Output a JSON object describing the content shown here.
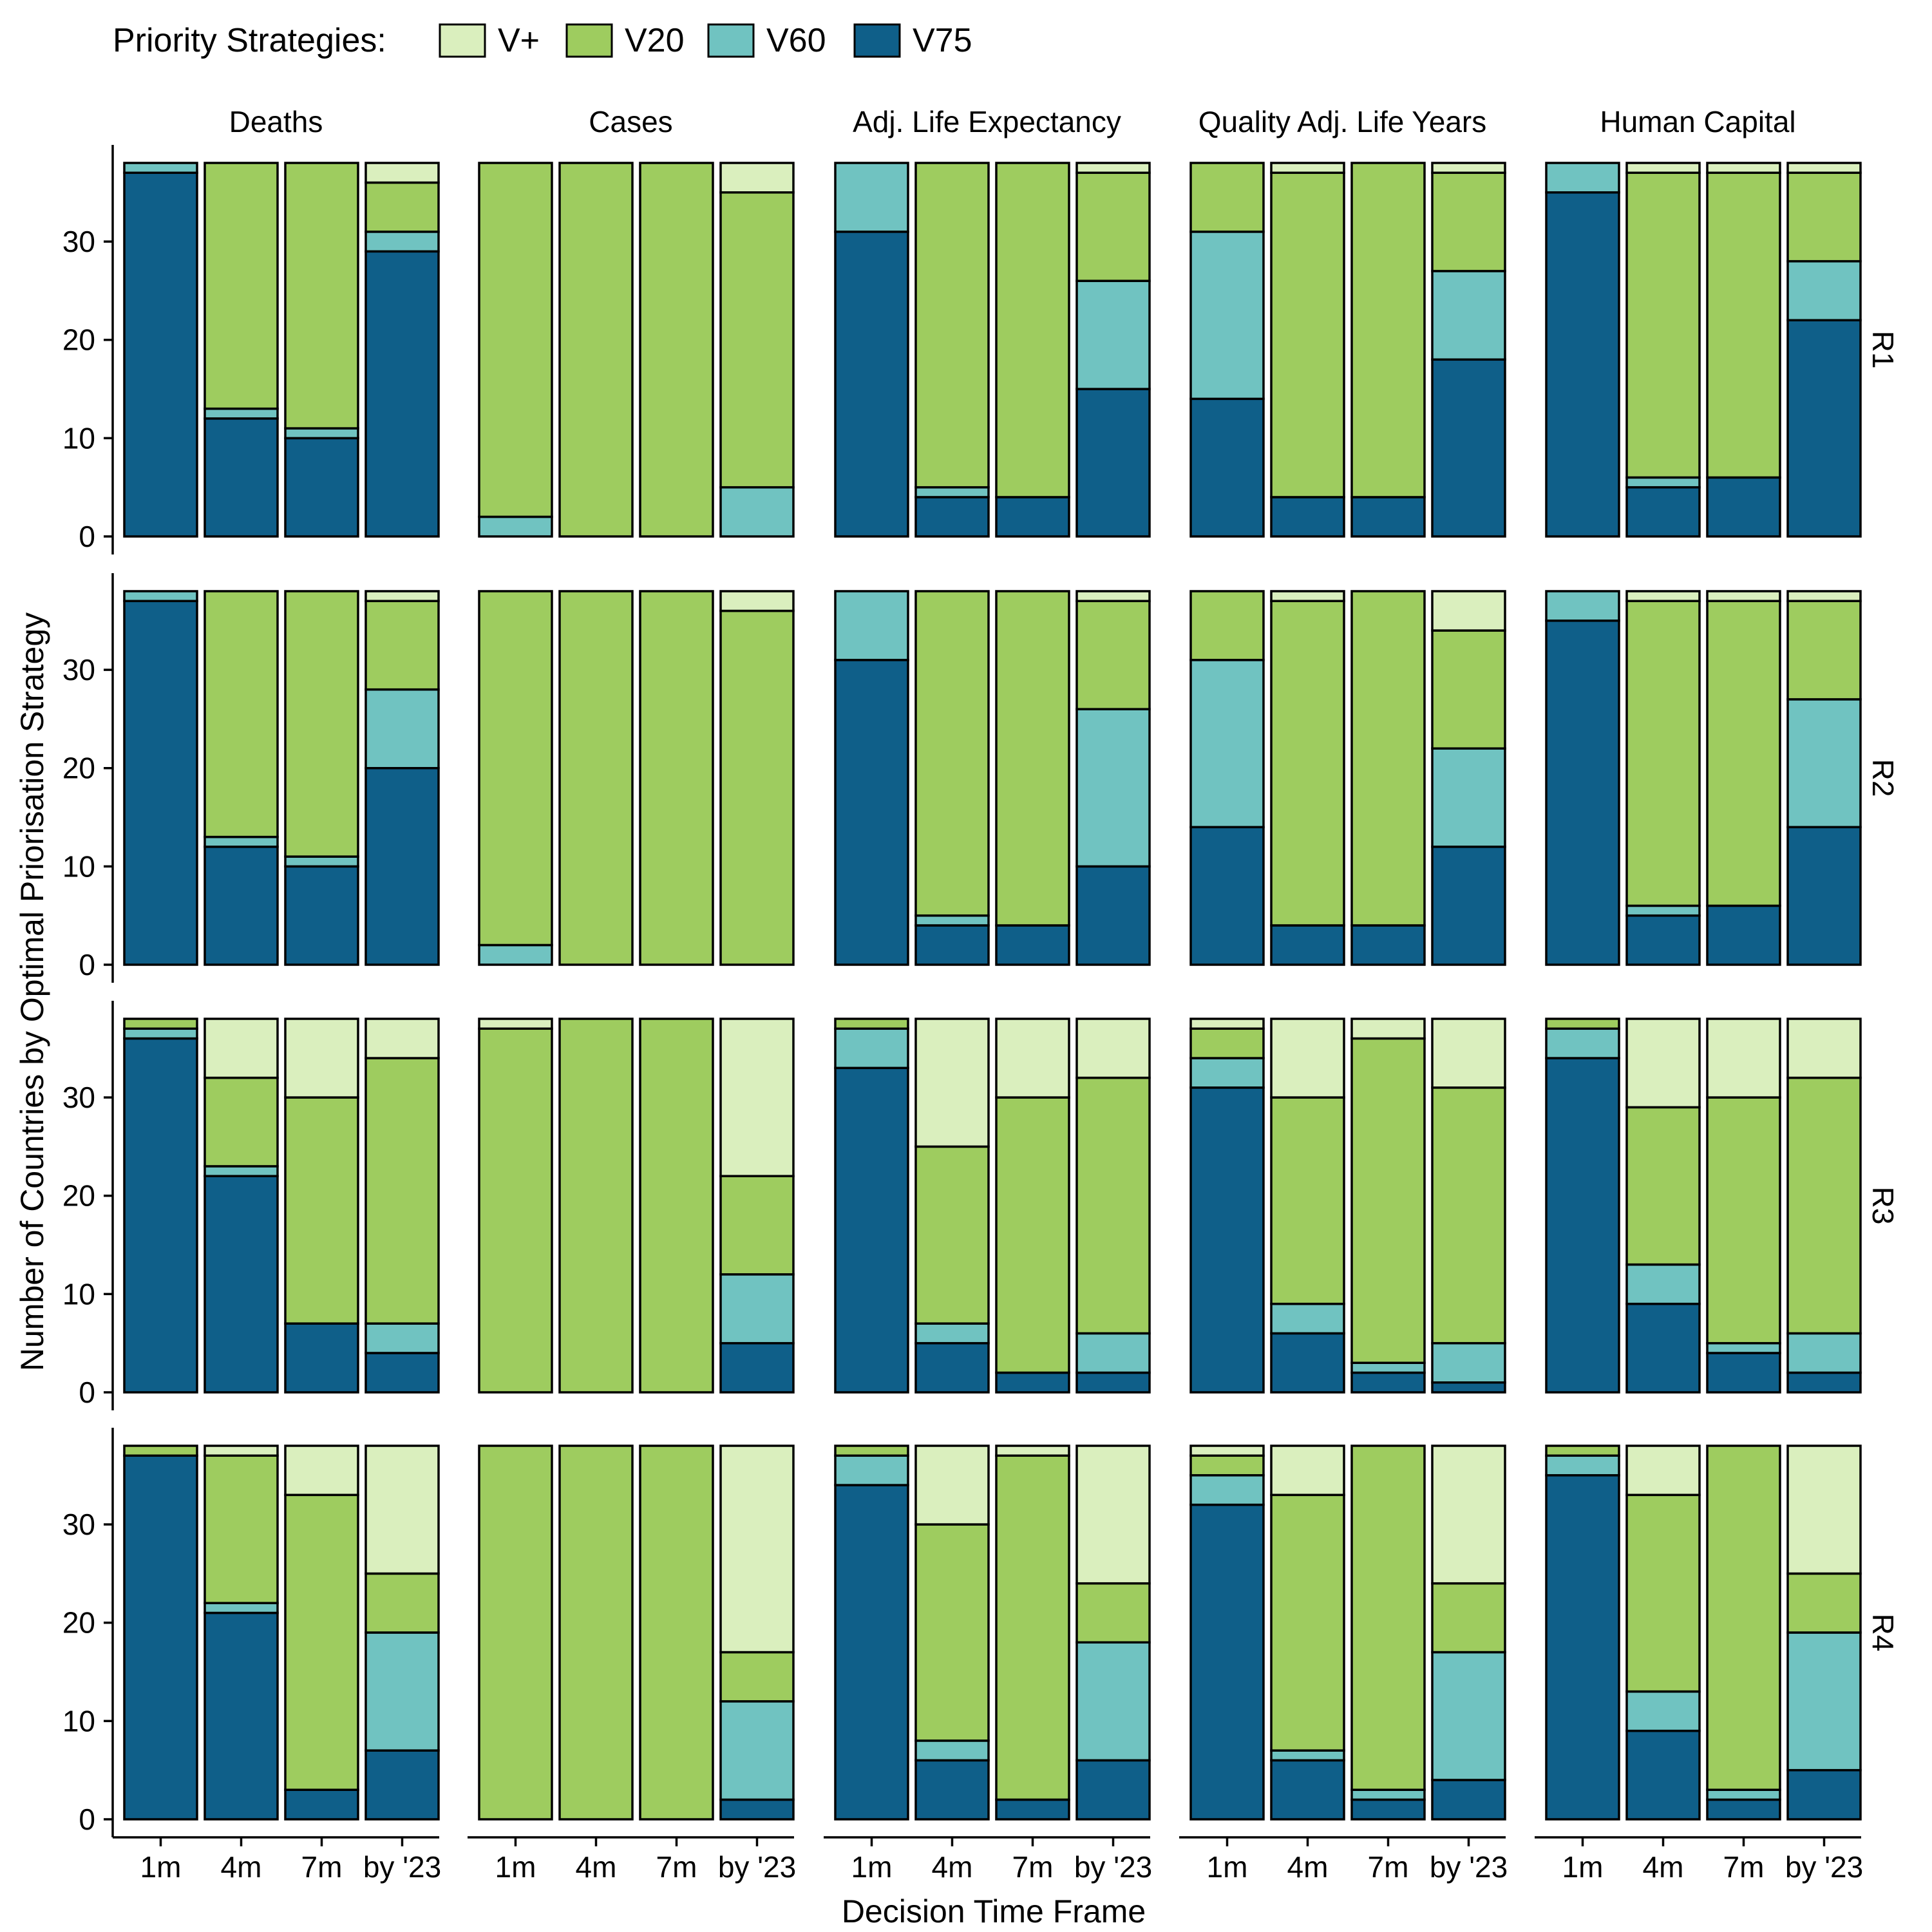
{
  "legend": {
    "title": "Priority Strategies:",
    "items": [
      {
        "key": "Vplus",
        "label": "V+",
        "color": "#DAEFBE"
      },
      {
        "key": "V20",
        "label": "V20",
        "color": "#9ECC5F"
      },
      {
        "key": "V60",
        "label": "V60",
        "color": "#70C3C1"
      },
      {
        "key": "V75",
        "label": "V75",
        "color": "#0F5F89"
      }
    ]
  },
  "chart_data": {
    "type": "bar",
    "stacked": true,
    "xlabel": "Decision Time Frame",
    "ylabel": "Number of Countries by Optimal Priorisation Strategy",
    "categories": [
      "1m",
      "4m",
      "7m",
      "by '23"
    ],
    "columns": [
      "Deaths",
      "Cases",
      "Adj. Life Expectancy",
      "Quality Adj. Life Years",
      "Human Capital"
    ],
    "rows": [
      "R1",
      "R2",
      "R3",
      "R4"
    ],
    "ylim": [
      0,
      38
    ],
    "yticks": [
      0,
      10,
      20,
      30
    ],
    "stack_order": [
      "V75",
      "V60",
      "V20",
      "Vplus"
    ],
    "grid": false,
    "legend_position": "top-left",
    "panels": [
      {
        "row": "R1",
        "column": "Deaths",
        "bars": [
          {
            "V75": 37,
            "V60": 1,
            "V20": 0,
            "Vplus": 0
          },
          {
            "V75": 12,
            "V60": 1,
            "V20": 25,
            "Vplus": 0
          },
          {
            "V75": 10,
            "V60": 1,
            "V20": 27,
            "Vplus": 0
          },
          {
            "V75": 29,
            "V60": 2,
            "V20": 5,
            "Vplus": 2
          }
        ]
      },
      {
        "row": "R1",
        "column": "Cases",
        "bars": [
          {
            "V75": 0,
            "V60": 2,
            "V20": 36,
            "Vplus": 0
          },
          {
            "V75": 0,
            "V60": 0,
            "V20": 38,
            "Vplus": 0
          },
          {
            "V75": 0,
            "V60": 0,
            "V20": 38,
            "Vplus": 0
          },
          {
            "V75": 0,
            "V60": 5,
            "V20": 30,
            "Vplus": 3
          }
        ]
      },
      {
        "row": "R1",
        "column": "Adj. Life Expectancy",
        "bars": [
          {
            "V75": 31,
            "V60": 7,
            "V20": 0,
            "Vplus": 0
          },
          {
            "V75": 4,
            "V60": 1,
            "V20": 33,
            "Vplus": 0
          },
          {
            "V75": 4,
            "V60": 0,
            "V20": 34,
            "Vplus": 0
          },
          {
            "V75": 15,
            "V60": 11,
            "V20": 11,
            "Vplus": 1
          }
        ]
      },
      {
        "row": "R1",
        "column": "Quality Adj. Life Years",
        "bars": [
          {
            "V75": 14,
            "V60": 17,
            "V20": 7,
            "Vplus": 0
          },
          {
            "V75": 4,
            "V60": 0,
            "V20": 33,
            "Vplus": 1
          },
          {
            "V75": 4,
            "V60": 0,
            "V20": 34,
            "Vplus": 0
          },
          {
            "V75": 18,
            "V60": 9,
            "V20": 10,
            "Vplus": 1
          }
        ]
      },
      {
        "row": "R1",
        "column": "Human Capital",
        "bars": [
          {
            "V75": 35,
            "V60": 3,
            "V20": 0,
            "Vplus": 0
          },
          {
            "V75": 5,
            "V60": 1,
            "V20": 31,
            "Vplus": 1
          },
          {
            "V75": 6,
            "V60": 0,
            "V20": 31,
            "Vplus": 1
          },
          {
            "V75": 22,
            "V60": 6,
            "V20": 9,
            "Vplus": 1
          }
        ]
      },
      {
        "row": "R2",
        "column": "Deaths",
        "bars": [
          {
            "V75": 37,
            "V60": 1,
            "V20": 0,
            "Vplus": 0
          },
          {
            "V75": 12,
            "V60": 1,
            "V20": 25,
            "Vplus": 0
          },
          {
            "V75": 10,
            "V60": 1,
            "V20": 27,
            "Vplus": 0
          },
          {
            "V75": 20,
            "V60": 8,
            "V20": 9,
            "Vplus": 1
          }
        ]
      },
      {
        "row": "R2",
        "column": "Cases",
        "bars": [
          {
            "V75": 0,
            "V60": 2,
            "V20": 36,
            "Vplus": 0
          },
          {
            "V75": 0,
            "V60": 0,
            "V20": 38,
            "Vplus": 0
          },
          {
            "V75": 0,
            "V60": 0,
            "V20": 38,
            "Vplus": 0
          },
          {
            "V75": 0,
            "V60": 0,
            "V20": 36,
            "Vplus": 2
          }
        ]
      },
      {
        "row": "R2",
        "column": "Adj. Life Expectancy",
        "bars": [
          {
            "V75": 31,
            "V60": 7,
            "V20": 0,
            "Vplus": 0
          },
          {
            "V75": 4,
            "V60": 1,
            "V20": 33,
            "Vplus": 0
          },
          {
            "V75": 4,
            "V60": 0,
            "V20": 34,
            "Vplus": 0
          },
          {
            "V75": 10,
            "V60": 16,
            "V20": 11,
            "Vplus": 1
          }
        ]
      },
      {
        "row": "R2",
        "column": "Quality Adj. Life Years",
        "bars": [
          {
            "V75": 14,
            "V60": 17,
            "V20": 7,
            "Vplus": 0
          },
          {
            "V75": 4,
            "V60": 0,
            "V20": 33,
            "Vplus": 1
          },
          {
            "V75": 4,
            "V60": 0,
            "V20": 34,
            "Vplus": 0
          },
          {
            "V75": 12,
            "V60": 10,
            "V20": 12,
            "Vplus": 4
          }
        ]
      },
      {
        "row": "R2",
        "column": "Human Capital",
        "bars": [
          {
            "V75": 35,
            "V60": 3,
            "V20": 0,
            "Vplus": 0
          },
          {
            "V75": 5,
            "V60": 1,
            "V20": 31,
            "Vplus": 1
          },
          {
            "V75": 6,
            "V60": 0,
            "V20": 31,
            "Vplus": 1
          },
          {
            "V75": 14,
            "V60": 13,
            "V20": 10,
            "Vplus": 1
          }
        ]
      },
      {
        "row": "R3",
        "column": "Deaths",
        "bars": [
          {
            "V75": 36,
            "V60": 1,
            "V20": 1,
            "Vplus": 0
          },
          {
            "V75": 22,
            "V60": 1,
            "V20": 9,
            "Vplus": 6
          },
          {
            "V75": 7,
            "V60": 0,
            "V20": 23,
            "Vplus": 8
          },
          {
            "V75": 4,
            "V60": 3,
            "V20": 27,
            "Vplus": 4
          }
        ]
      },
      {
        "row": "R3",
        "column": "Cases",
        "bars": [
          {
            "V75": 0,
            "V60": 0,
            "V20": 37,
            "Vplus": 1
          },
          {
            "V75": 0,
            "V60": 0,
            "V20": 38,
            "Vplus": 0
          },
          {
            "V75": 0,
            "V60": 0,
            "V20": 38,
            "Vplus": 0
          },
          {
            "V75": 5,
            "V60": 7,
            "V20": 10,
            "Vplus": 16
          }
        ]
      },
      {
        "row": "R3",
        "column": "Adj. Life Expectancy",
        "bars": [
          {
            "V75": 33,
            "V60": 4,
            "V20": 1,
            "Vplus": 0
          },
          {
            "V75": 5,
            "V60": 2,
            "V20": 18,
            "Vplus": 13
          },
          {
            "V75": 2,
            "V60": 0,
            "V20": 28,
            "Vplus": 8
          },
          {
            "V75": 2,
            "V60": 4,
            "V20": 26,
            "Vplus": 6
          }
        ]
      },
      {
        "row": "R3",
        "column": "Quality Adj. Life Years",
        "bars": [
          {
            "V75": 31,
            "V60": 3,
            "V20": 3,
            "Vplus": 1
          },
          {
            "V75": 6,
            "V60": 3,
            "V20": 21,
            "Vplus": 8
          },
          {
            "V75": 2,
            "V60": 1,
            "V20": 33,
            "Vplus": 2
          },
          {
            "V75": 1,
            "V60": 4,
            "V20": 26,
            "Vplus": 7
          }
        ]
      },
      {
        "row": "R3",
        "column": "Human Capital",
        "bars": [
          {
            "V75": 34,
            "V60": 3,
            "V20": 1,
            "Vplus": 0
          },
          {
            "V75": 9,
            "V60": 4,
            "V20": 16,
            "Vplus": 9
          },
          {
            "V75": 4,
            "V60": 1,
            "V20": 25,
            "Vplus": 8
          },
          {
            "V75": 2,
            "V60": 4,
            "V20": 26,
            "Vplus": 6
          }
        ]
      },
      {
        "row": "R4",
        "column": "Deaths",
        "bars": [
          {
            "V75": 37,
            "V60": 0,
            "V20": 1,
            "Vplus": 0
          },
          {
            "V75": 21,
            "V60": 1,
            "V20": 15,
            "Vplus": 1
          },
          {
            "V75": 3,
            "V60": 0,
            "V20": 30,
            "Vplus": 5
          },
          {
            "V75": 7,
            "V60": 12,
            "V20": 6,
            "Vplus": 13
          }
        ]
      },
      {
        "row": "R4",
        "column": "Cases",
        "bars": [
          {
            "V75": 0,
            "V60": 0,
            "V20": 38,
            "Vplus": 0
          },
          {
            "V75": 0,
            "V60": 0,
            "V20": 38,
            "Vplus": 0
          },
          {
            "V75": 0,
            "V60": 0,
            "V20": 38,
            "Vplus": 0
          },
          {
            "V75": 2,
            "V60": 10,
            "V20": 5,
            "Vplus": 21
          }
        ]
      },
      {
        "row": "R4",
        "column": "Adj. Life Expectancy",
        "bars": [
          {
            "V75": 34,
            "V60": 3,
            "V20": 1,
            "Vplus": 0
          },
          {
            "V75": 6,
            "V60": 2,
            "V20": 22,
            "Vplus": 8
          },
          {
            "V75": 2,
            "V60": 0,
            "V20": 35,
            "Vplus": 1
          },
          {
            "V75": 6,
            "V60": 12,
            "V20": 6,
            "Vplus": 14
          }
        ]
      },
      {
        "row": "R4",
        "column": "Quality Adj. Life Years",
        "bars": [
          {
            "V75": 32,
            "V60": 3,
            "V20": 2,
            "Vplus": 1
          },
          {
            "V75": 6,
            "V60": 1,
            "V20": 26,
            "Vplus": 5
          },
          {
            "V75": 2,
            "V60": 1,
            "V20": 35,
            "Vplus": 0
          },
          {
            "V75": 4,
            "V60": 13,
            "V20": 7,
            "Vplus": 14
          }
        ]
      },
      {
        "row": "R4",
        "column": "Human Capital",
        "bars": [
          {
            "V75": 35,
            "V60": 2,
            "V20": 1,
            "Vplus": 0
          },
          {
            "V75": 9,
            "V60": 4,
            "V20": 20,
            "Vplus": 5
          },
          {
            "V75": 2,
            "V60": 1,
            "V20": 35,
            "Vplus": 0
          },
          {
            "V75": 5,
            "V60": 14,
            "V20": 6,
            "Vplus": 13
          }
        ]
      }
    ]
  }
}
